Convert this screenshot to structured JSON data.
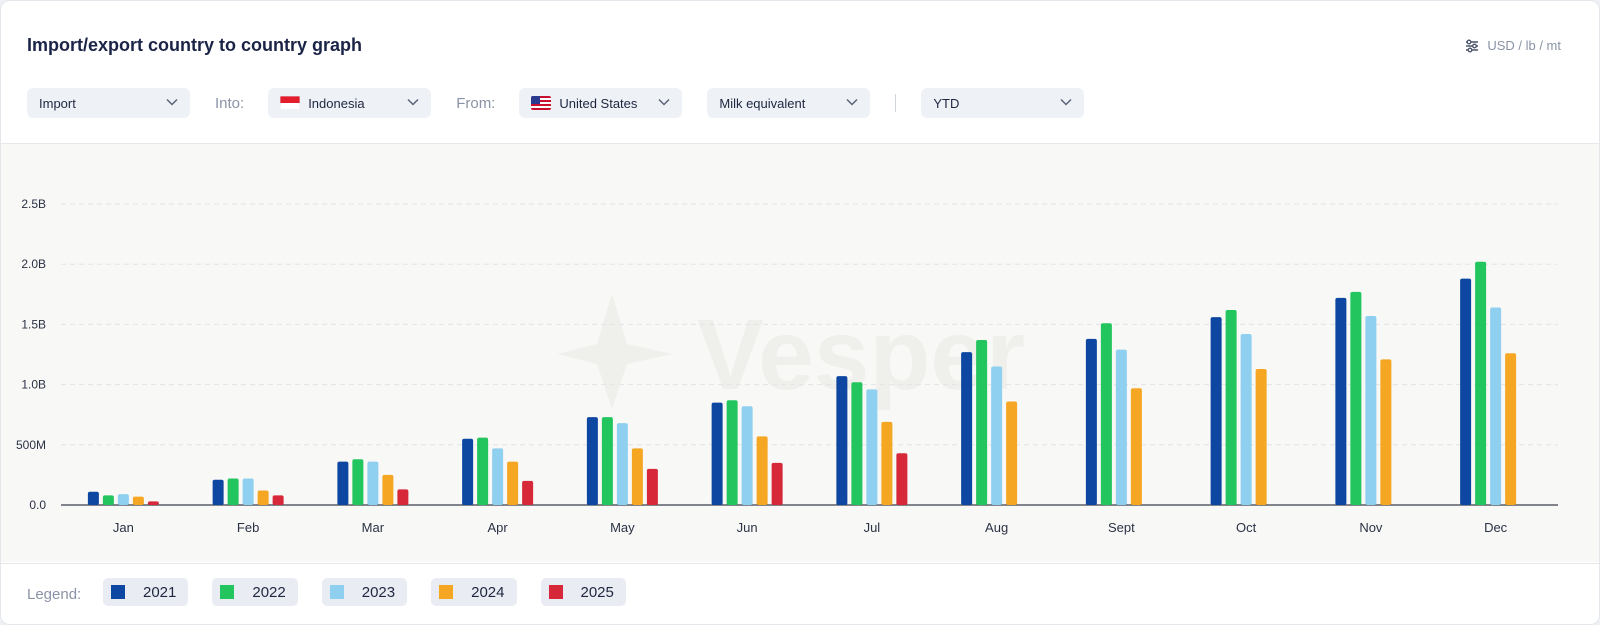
{
  "header": {
    "title": "Import/export country to country graph",
    "units_label": "USD / lb / mt"
  },
  "filters": {
    "flow": "Import",
    "into_label": "Into:",
    "into_country": "Indonesia",
    "from_label": "From:",
    "from_country": "United States",
    "measure": "Milk equivalent",
    "period": "YTD"
  },
  "legend": {
    "label": "Legend:",
    "items": [
      {
        "name": "2021",
        "color": "#0d47a1"
      },
      {
        "name": "2022",
        "color": "#22c55e"
      },
      {
        "name": "2023",
        "color": "#8fd0f0"
      },
      {
        "name": "2024",
        "color": "#f5a623"
      },
      {
        "name": "2025",
        "color": "#d62839"
      }
    ]
  },
  "watermark": "Vesper",
  "chart_data": {
    "type": "bar",
    "categories": [
      "Jan",
      "Feb",
      "Mar",
      "Apr",
      "May",
      "Jun",
      "Jul",
      "Aug",
      "Sept",
      "Oct",
      "Nov",
      "Dec"
    ],
    "series": [
      {
        "name": "2021",
        "color": "#0d47a1",
        "values": [
          0.11,
          0.21,
          0.36,
          0.55,
          0.73,
          0.85,
          1.07,
          1.27,
          1.38,
          1.56,
          1.72,
          1.88
        ]
      },
      {
        "name": "2022",
        "color": "#22c55e",
        "values": [
          0.08,
          0.22,
          0.38,
          0.56,
          0.73,
          0.87,
          1.02,
          1.37,
          1.51,
          1.62,
          1.77,
          2.02
        ]
      },
      {
        "name": "2023",
        "color": "#8fd0f0",
        "values": [
          0.09,
          0.22,
          0.36,
          0.47,
          0.68,
          0.82,
          0.96,
          1.15,
          1.29,
          1.42,
          1.57,
          1.64
        ]
      },
      {
        "name": "2024",
        "color": "#f5a623",
        "values": [
          0.07,
          0.12,
          0.25,
          0.36,
          0.47,
          0.57,
          0.69,
          0.86,
          0.97,
          1.13,
          1.21,
          1.26
        ]
      },
      {
        "name": "2025",
        "color": "#d62839",
        "values": [
          0.03,
          0.08,
          0.13,
          0.2,
          0.3,
          0.35,
          0.43,
          null,
          null,
          null,
          null,
          null
        ]
      }
    ],
    "yticks": [
      0,
      0.5,
      1.0,
      1.5,
      2.0,
      2.5
    ],
    "ytick_labels": [
      "0.0",
      "500M",
      "1.0B",
      "1.5B",
      "2.0B",
      "2.5B"
    ],
    "ylim": [
      0,
      2.5
    ],
    "value_unit": "billions",
    "grid": "horizontal dashed",
    "legend_position": "bottom-left"
  }
}
